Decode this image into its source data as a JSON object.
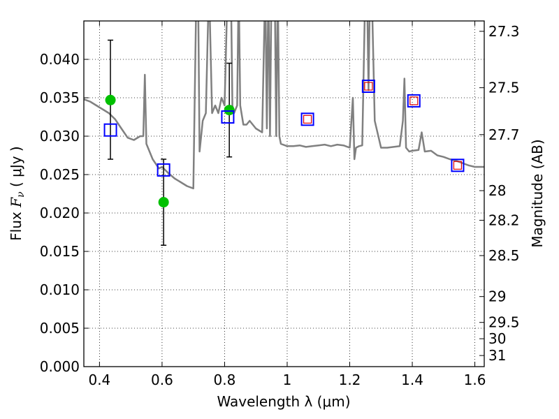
{
  "chart_data": {
    "type": "scatter",
    "title": "",
    "xlabel": "Wavelength  λ (μm)",
    "ylabel_prefix": "Flux  ",
    "ylabel_math": "F",
    "ylabel_sub": "ν",
    "ylabel_suffix": "  ( μJy )",
    "y2label": "Magnitude (AB)",
    "xlim": [
      0.35,
      1.63
    ],
    "ylim": [
      0.0,
      0.045
    ],
    "grid": true,
    "x_ticks": [
      0.4,
      0.6,
      0.8,
      1.0,
      1.2,
      1.4,
      1.6
    ],
    "x_tick_labels": [
      "0.4",
      "0.6",
      "0.8",
      "1",
      "1.2",
      "1.4",
      "1.6"
    ],
    "y_ticks": [
      0.0,
      0.005,
      0.01,
      0.015,
      0.02,
      0.025,
      0.03,
      0.035,
      0.04
    ],
    "y_tick_labels": [
      "0.000",
      "0.005",
      "0.010",
      "0.015",
      "0.020",
      "0.025",
      "0.030",
      "0.035",
      "0.040"
    ],
    "y2_ticks": [
      27.3,
      27.5,
      27.7,
      28,
      28.2,
      28.5,
      29,
      29.5,
      30,
      31
    ],
    "y2_tick_labels": [
      "27.3",
      "27.5",
      "27.7",
      "28",
      "28.2",
      "28.5",
      "29",
      "29.5",
      "30",
      "31"
    ],
    "series": [
      {
        "kind": "line",
        "color": "#808080",
        "x": [
          0.35,
          0.37,
          0.39,
          0.41,
          0.43,
          0.45,
          0.47,
          0.49,
          0.51,
          0.53,
          0.54,
          0.545,
          0.55,
          0.57,
          0.59,
          0.6,
          0.62,
          0.64,
          0.66,
          0.68,
          0.7,
          0.71,
          0.715,
          0.72,
          0.725,
          0.73,
          0.74,
          0.75,
          0.76,
          0.77,
          0.78,
          0.79,
          0.8,
          0.81,
          0.82,
          0.825,
          0.83,
          0.84,
          0.845,
          0.85,
          0.86,
          0.87,
          0.88,
          0.9,
          0.92,
          0.93,
          0.935,
          0.94,
          0.945,
          0.95,
          0.955,
          0.96,
          0.965,
          0.97,
          0.975,
          0.98,
          1.0,
          1.02,
          1.04,
          1.06,
          1.08,
          1.1,
          1.12,
          1.14,
          1.16,
          1.18,
          1.2,
          1.21,
          1.215,
          1.22,
          1.23,
          1.24,
          1.25,
          1.255,
          1.26,
          1.265,
          1.27,
          1.28,
          1.3,
          1.32,
          1.34,
          1.36,
          1.37,
          1.375,
          1.38,
          1.39,
          1.4,
          1.42,
          1.43,
          1.44,
          1.46,
          1.48,
          1.5,
          1.52,
          1.54,
          1.56,
          1.58,
          1.6,
          1.63
        ],
        "y": [
          0.0348,
          0.0345,
          0.034,
          0.0335,
          0.033,
          0.0322,
          0.031,
          0.0298,
          0.0295,
          0.03,
          0.03,
          0.038,
          0.029,
          0.027,
          0.0258,
          0.026,
          0.0252,
          0.0245,
          0.024,
          0.0235,
          0.0232,
          0.05,
          0.05,
          0.028,
          0.03,
          0.032,
          0.033,
          0.05,
          0.033,
          0.034,
          0.033,
          0.035,
          0.034,
          0.05,
          0.05,
          0.034,
          0.033,
          0.034,
          0.05,
          0.034,
          0.0315,
          0.0315,
          0.032,
          0.031,
          0.0305,
          0.05,
          0.031,
          0.05,
          0.03,
          0.05,
          0.05,
          0.05,
          0.03,
          0.05,
          0.03,
          0.029,
          0.0287,
          0.0287,
          0.0288,
          0.0286,
          0.0287,
          0.0288,
          0.0289,
          0.0287,
          0.0289,
          0.0288,
          0.0285,
          0.035,
          0.027,
          0.0285,
          0.0287,
          0.0288,
          0.05,
          0.05,
          0.036,
          0.05,
          0.05,
          0.032,
          0.0285,
          0.0285,
          0.0286,
          0.0287,
          0.032,
          0.0375,
          0.0285,
          0.028,
          0.0281,
          0.0282,
          0.0305,
          0.028,
          0.0281,
          0.0275,
          0.0273,
          0.027,
          0.0268,
          0.0265,
          0.0262,
          0.026,
          0.026
        ]
      },
      {
        "kind": "markers",
        "marker": "circle",
        "color": "#00c000",
        "x": [
          0.435,
          0.605,
          0.815
        ],
        "y": [
          0.0347,
          0.0214,
          0.0334
        ],
        "yerr_low": [
          0.027,
          0.0158,
          0.0273
        ],
        "yerr_high": [
          0.0425,
          0.027,
          0.0395
        ]
      },
      {
        "kind": "markers",
        "marker": "square-open",
        "color": "#0000ff",
        "x": [
          0.435,
          0.605,
          0.81,
          1.065,
          1.26,
          1.405,
          1.545
        ],
        "y": [
          0.0308,
          0.0256,
          0.0325,
          0.0322,
          0.0365,
          0.0346,
          0.0262
        ]
      },
      {
        "kind": "markers",
        "marker": "square-open-small",
        "color": "#e00000",
        "x": [
          1.065,
          1.26,
          1.405,
          1.545
        ],
        "y": [
          0.0322,
          0.0365,
          0.0346,
          0.0262
        ]
      }
    ]
  }
}
